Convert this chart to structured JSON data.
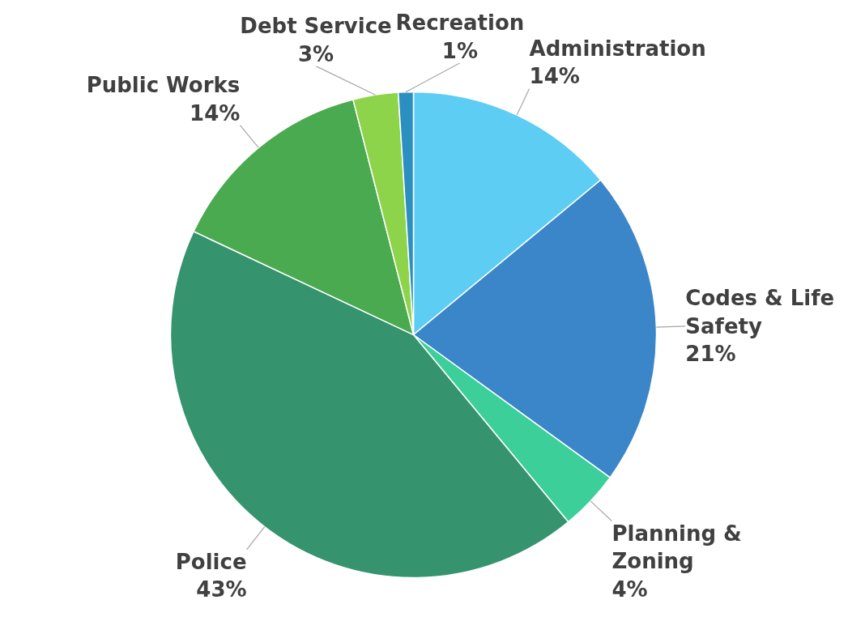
{
  "chart_data": {
    "type": "pie",
    "categories": [
      "Administration",
      "Codes & Life Safety",
      "Planning & Zoning",
      "Police",
      "Public Works",
      "Debt Service",
      "Recreation"
    ],
    "values": [
      14,
      21,
      4,
      43,
      14,
      3,
      1
    ],
    "colors": [
      "#5ecdf3",
      "#3a86c8",
      "#3ccf9a",
      "#35936e",
      "#4aaa50",
      "#8ed44a",
      "#2b8fc0"
    ],
    "value_labels": [
      "14%",
      "21%",
      "4%",
      "43%",
      "14%",
      "3%",
      "1%"
    ]
  }
}
